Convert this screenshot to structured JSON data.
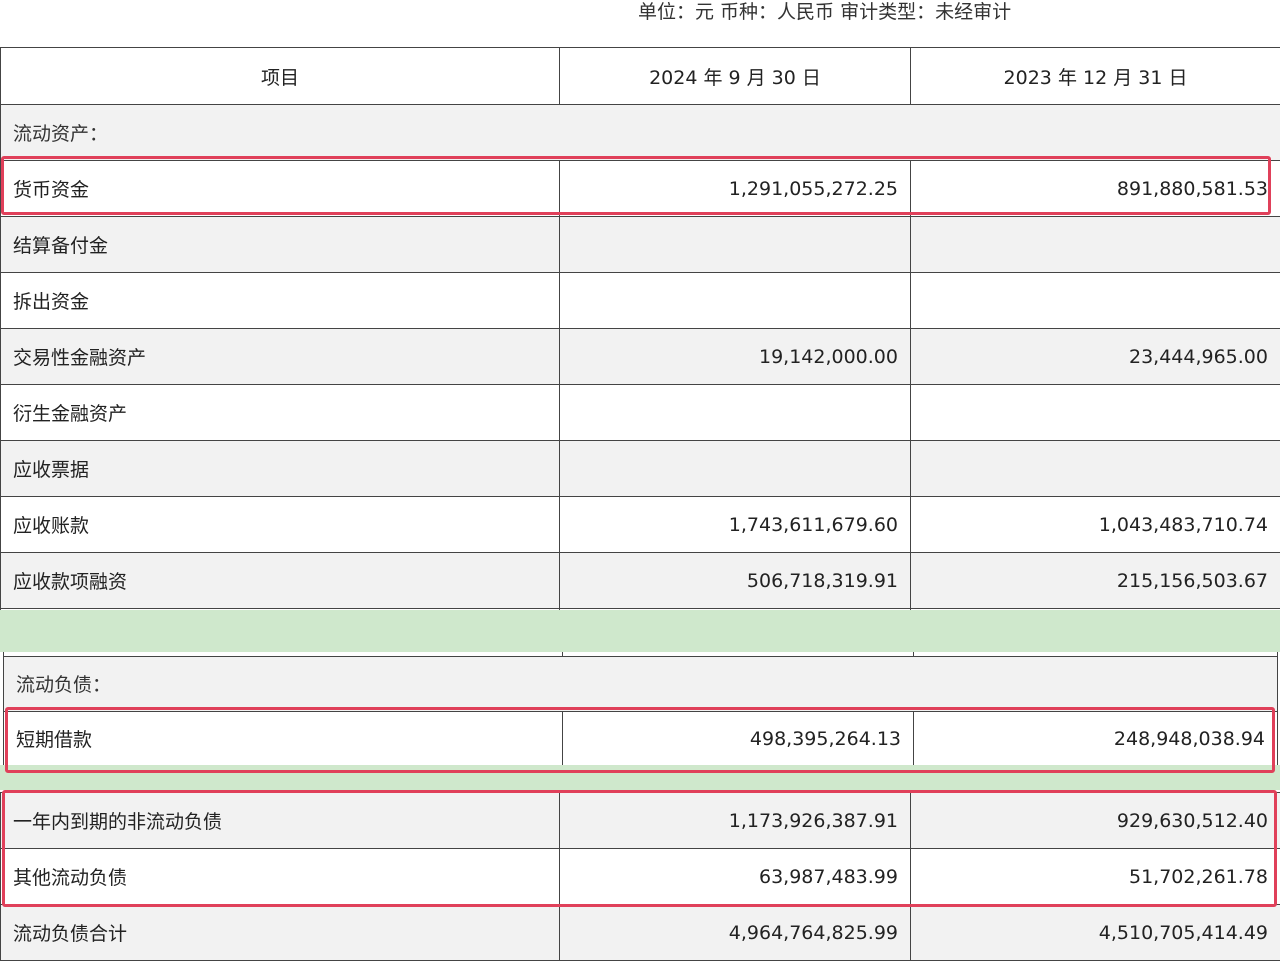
{
  "meta_line": "单位：元  币种：人民币  审计类型：未经审计",
  "header": {
    "item": "项目",
    "col1": "2024 年 9 月 30 日",
    "col2": "2023 年 12 月 31 日"
  },
  "assets": {
    "section": "流动资产：",
    "rows": [
      {
        "label": "货币资金",
        "v1": "1,291,055,272.25",
        "v2": "891,880,581.53"
      },
      {
        "label": "结算备付金",
        "v1": "",
        "v2": ""
      },
      {
        "label": "拆出资金",
        "v1": "",
        "v2": ""
      },
      {
        "label": "交易性金融资产",
        "v1": "19,142,000.00",
        "v2": "23,444,965.00"
      },
      {
        "label": "衍生金融资产",
        "v1": "",
        "v2": ""
      },
      {
        "label": "应收票据",
        "v1": "",
        "v2": ""
      },
      {
        "label": "应收账款",
        "v1": "1,743,611,679.60",
        "v2": "1,043,483,710.74"
      },
      {
        "label": "应收款项融资",
        "v1": "506,718,319.91",
        "v2": "215,156,503.67"
      }
    ]
  },
  "liabilities": {
    "section": "流动负债：",
    "rows": [
      {
        "label": "短期借款",
        "v1": "498,395,264.13",
        "v2": "248,948,038.94"
      }
    ]
  },
  "liabilities_more": {
    "rows": [
      {
        "label": "一年内到期的非流动负债",
        "v1": "1,173,926,387.91",
        "v2": "929,630,512.40"
      },
      {
        "label": "其他流动负债",
        "v1": "63,987,483.99",
        "v2": "51,702,261.78"
      },
      {
        "label": "流动负债合计",
        "v1": "4,964,764,825.99",
        "v2": "4,510,705,414.49"
      }
    ]
  },
  "colors": {
    "highlight": "#e0405a",
    "separator": "#cfe8cc",
    "row_gray": "#f2f2f2"
  }
}
